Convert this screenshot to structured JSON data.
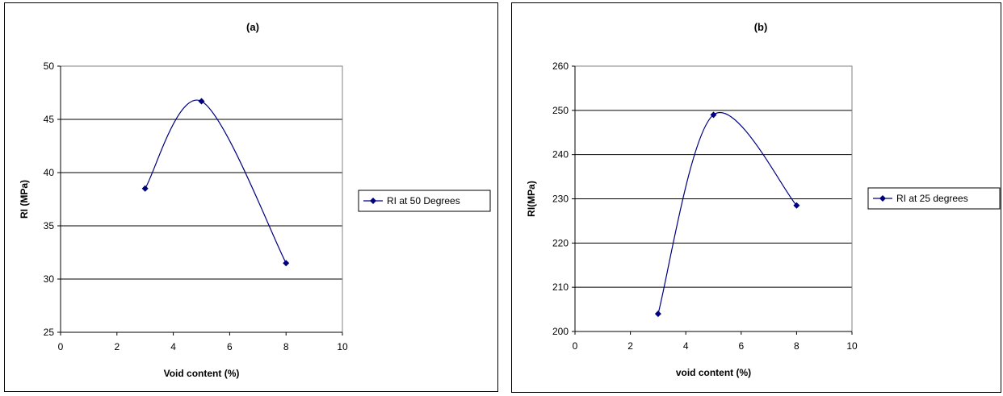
{
  "chart_data": [
    {
      "type": "line",
      "title": "(a)",
      "xlabel": "Void content (%)",
      "ylabel": "RI (MPa)",
      "xlim": [
        0,
        10
      ],
      "ylim": [
        25,
        50
      ],
      "xticks": [
        "0",
        "2",
        "4",
        "6",
        "8",
        "10"
      ],
      "yticks": [
        "25",
        "30",
        "35",
        "40",
        "45",
        "50"
      ],
      "grid": "horizontal",
      "smooth": true,
      "legend_position": "right",
      "series": [
        {
          "name": "RI at 50 Degrees",
          "color": "#000080",
          "marker": "diamond",
          "x": [
            3,
            5,
            8
          ],
          "y": [
            38.5,
            46.7,
            31.5
          ]
        }
      ]
    },
    {
      "type": "line",
      "title": "(b)",
      "xlabel": "void content (%)",
      "ylabel": "RI(MPa)",
      "xlim": [
        0,
        10
      ],
      "ylim": [
        200,
        260
      ],
      "xticks": [
        "0",
        "2",
        "4",
        "6",
        "8",
        "10"
      ],
      "yticks": [
        "200",
        "210",
        "220",
        "230",
        "240",
        "250",
        "260"
      ],
      "grid": "horizontal",
      "smooth": true,
      "legend_position": "right",
      "series": [
        {
          "name": "RI at 25 degrees",
          "color": "#000080",
          "marker": "diamond",
          "x": [
            3,
            5,
            8
          ],
          "y": [
            204,
            249,
            228.5
          ]
        }
      ]
    }
  ]
}
